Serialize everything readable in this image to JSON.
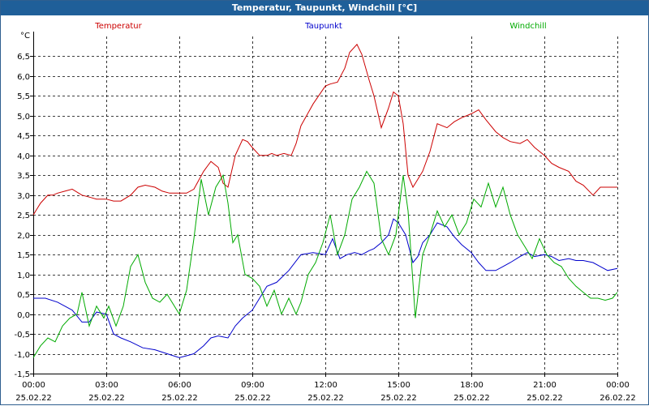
{
  "chart_data": {
    "type": "line",
    "title": "Temperatur, Taupunkt, Windchill [°C]",
    "ylabel": "°C",
    "ylim": [
      -1.5,
      7.0
    ],
    "y_ticks": [
      "-1,5",
      "-1,0",
      "-0,5",
      "0,0",
      "0,5",
      "1,0",
      "1,5",
      "2,0",
      "2,5",
      "3,0",
      "3,5",
      "4,0",
      "4,5",
      "5,0",
      "5,5",
      "6,0",
      "6,5"
    ],
    "y_tick_values": [
      -1.5,
      -1.0,
      -0.5,
      0.0,
      0.5,
      1.0,
      1.5,
      2.0,
      2.5,
      3.0,
      3.5,
      4.0,
      4.5,
      5.0,
      5.5,
      6.0,
      6.5
    ],
    "xlim": [
      0,
      24
    ],
    "x_tick_values": [
      0,
      3,
      6,
      9,
      12,
      15,
      18,
      21,
      24
    ],
    "x_tick_times": [
      "00:00",
      "03:00",
      "06:00",
      "09:00",
      "12:00",
      "15:00",
      "18:00",
      "21:00",
      "00:00"
    ],
    "x_tick_dates": [
      "25.02.22",
      "25.02.22",
      "25.02.22",
      "25.02.22",
      "25.02.22",
      "25.02.22",
      "25.02.22",
      "25.02.22",
      "26.02.22"
    ],
    "grid": true,
    "series": [
      {
        "name": "Temperatur",
        "color": "#cc0000",
        "x": [
          0,
          0.3,
          0.6,
          0.8,
          1,
          1.3,
          1.6,
          2,
          2.3,
          2.6,
          3,
          3.3,
          3.6,
          4,
          4.3,
          4.6,
          5,
          5.3,
          5.6,
          6,
          6.3,
          6.6,
          7,
          7.3,
          7.6,
          7.8,
          8,
          8.3,
          8.6,
          8.8,
          9,
          9.3,
          9.6,
          9.8,
          10,
          10.3,
          10.6,
          10.8,
          11,
          11.5,
          12,
          12.2,
          12.5,
          12.8,
          13,
          13.3,
          13.5,
          13.8,
          14,
          14.3,
          14.6,
          14.8,
          15,
          15.2,
          15.4,
          15.6,
          15.8,
          16,
          16.3,
          16.6,
          17,
          17.3,
          17.6,
          18,
          18.3,
          18.6,
          19,
          19.3,
          19.6,
          20,
          20.3,
          20.6,
          21,
          21.3,
          21.6,
          22,
          22.3,
          22.6,
          23,
          23.3,
          23.6,
          24
        ],
        "values": [
          2.5,
          2.8,
          3.0,
          3.0,
          3.05,
          3.1,
          3.15,
          3.0,
          2.95,
          2.9,
          2.9,
          2.85,
          2.85,
          3.0,
          3.2,
          3.25,
          3.2,
          3.1,
          3.05,
          3.05,
          3.05,
          3.15,
          3.6,
          3.85,
          3.7,
          3.3,
          3.2,
          4.0,
          4.4,
          4.35,
          4.2,
          4.0,
          4.0,
          4.05,
          4.0,
          4.05,
          4.0,
          4.3,
          4.75,
          5.3,
          5.75,
          5.8,
          5.85,
          6.2,
          6.6,
          6.8,
          6.55,
          5.9,
          5.5,
          4.7,
          5.2,
          5.6,
          5.5,
          4.8,
          3.5,
          3.2,
          3.4,
          3.6,
          4.1,
          4.8,
          4.7,
          4.85,
          4.95,
          5.05,
          5.15,
          4.9,
          4.6,
          4.45,
          4.35,
          4.3,
          4.4,
          4.2,
          4.0,
          3.8,
          3.7,
          3.6,
          3.35,
          3.25,
          3.0,
          3.2,
          3.2,
          3.2
        ]
      },
      {
        "name": "Taupunkt",
        "color": "#0000cc",
        "x": [
          0,
          0.5,
          1,
          1.3,
          1.6,
          2,
          2.3,
          2.6,
          3,
          3.3,
          3.6,
          4,
          4.5,
          5,
          5.5,
          6,
          6.3,
          6.6,
          7,
          7.3,
          7.6,
          8,
          8.3,
          8.6,
          9,
          9.3,
          9.6,
          10,
          10.5,
          11,
          11.5,
          12,
          12.3,
          12.6,
          12.9,
          13.2,
          13.5,
          13.8,
          14,
          14.3,
          14.6,
          14.8,
          15,
          15.3,
          15.6,
          15.8,
          16,
          16.3,
          16.6,
          17,
          17.3,
          17.6,
          18,
          18.3,
          18.6,
          19,
          19.3,
          19.6,
          20,
          20.3,
          20.6,
          21,
          21.3,
          21.6,
          22,
          22.3,
          22.6,
          23,
          23.3,
          23.6,
          24
        ],
        "values": [
          0.4,
          0.4,
          0.3,
          0.2,
          0.1,
          -0.2,
          -0.2,
          0.05,
          0.0,
          -0.5,
          -0.6,
          -0.7,
          -0.85,
          -0.9,
          -1.0,
          -1.1,
          -1.05,
          -1.0,
          -0.8,
          -0.6,
          -0.55,
          -0.6,
          -0.3,
          -0.1,
          0.1,
          0.4,
          0.7,
          0.8,
          1.1,
          1.5,
          1.55,
          1.5,
          1.9,
          1.4,
          1.5,
          1.55,
          1.5,
          1.6,
          1.65,
          1.8,
          2.0,
          2.4,
          2.3,
          2.0,
          1.3,
          1.45,
          1.8,
          2.0,
          2.3,
          2.2,
          1.95,
          1.75,
          1.55,
          1.3,
          1.1,
          1.1,
          1.2,
          1.3,
          1.45,
          1.55,
          1.45,
          1.5,
          1.45,
          1.35,
          1.4,
          1.35,
          1.35,
          1.3,
          1.2,
          1.1,
          1.15
        ]
      },
      {
        "name": "Windchill",
        "color": "#00aa00",
        "x": [
          0,
          0.3,
          0.6,
          0.9,
          1.2,
          1.5,
          1.8,
          2,
          2.3,
          2.6,
          2.9,
          3.1,
          3.4,
          3.7,
          4,
          4.3,
          4.6,
          4.9,
          5.2,
          5.5,
          5.8,
          6,
          6.3,
          6.6,
          6.9,
          7.2,
          7.5,
          7.8,
          8,
          8.2,
          8.4,
          8.7,
          9,
          9.3,
          9.6,
          9.9,
          10.2,
          10.5,
          10.8,
          11,
          11.3,
          11.6,
          11.9,
          12.2,
          12.5,
          12.8,
          13.1,
          13.4,
          13.7,
          14,
          14.3,
          14.6,
          14.9,
          15.2,
          15.4,
          15.7,
          16,
          16.3,
          16.6,
          16.9,
          17.2,
          17.5,
          17.8,
          18.1,
          18.4,
          18.7,
          19,
          19.3,
          19.6,
          19.9,
          20.2,
          20.5,
          20.8,
          21.1,
          21.4,
          21.7,
          22,
          22.3,
          22.6,
          22.9,
          23.2,
          23.5,
          23.8,
          24
        ],
        "values": [
          -1.1,
          -0.8,
          -0.6,
          -0.7,
          -0.3,
          -0.1,
          0.0,
          0.55,
          -0.3,
          0.2,
          -0.1,
          0.2,
          -0.3,
          0.2,
          1.2,
          1.5,
          0.8,
          0.4,
          0.3,
          0.5,
          0.2,
          0.0,
          0.6,
          1.9,
          3.4,
          2.5,
          3.2,
          3.5,
          2.8,
          1.8,
          2.0,
          1.0,
          0.9,
          0.7,
          0.2,
          0.6,
          0.0,
          0.4,
          0.0,
          0.3,
          1.0,
          1.3,
          1.8,
          2.5,
          1.5,
          2.0,
          2.9,
          3.2,
          3.6,
          3.3,
          1.9,
          1.5,
          2.0,
          3.5,
          2.6,
          -0.1,
          1.5,
          2.0,
          2.6,
          2.2,
          2.5,
          2.0,
          2.3,
          2.9,
          2.7,
          3.3,
          2.7,
          3.2,
          2.5,
          2.0,
          1.7,
          1.4,
          1.9,
          1.5,
          1.3,
          1.2,
          0.9,
          0.7,
          0.55,
          0.4,
          0.4,
          0.35,
          0.4,
          0.55
        ]
      }
    ]
  }
}
